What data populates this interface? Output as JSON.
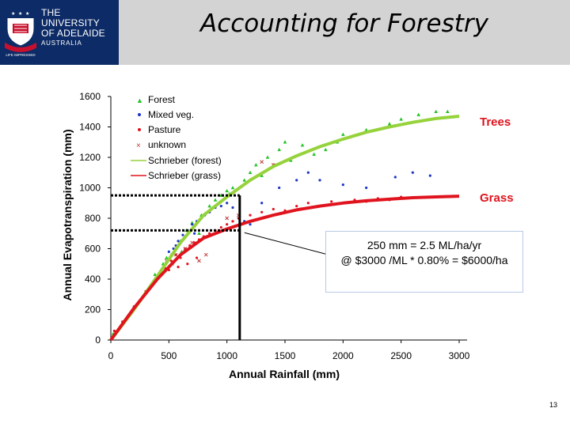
{
  "header": {
    "university": {
      "line1": "THE UNIVERSITY",
      "line2": "OF ADELAIDE",
      "line3": "AUSTRALIA",
      "seal": "LIFE IMPRESSED"
    },
    "title": "Accounting for Forestry"
  },
  "chart_data": {
    "type": "scatter",
    "xlabel": "Annual Rainfall (mm)",
    "ylabel": "Annual Evapotranspiration (mm)",
    "xlim": [
      0,
      3000
    ],
    "ylim": [
      0,
      1600
    ],
    "xticks": [
      "0",
      "500",
      "1000",
      "1500",
      "2000",
      "2500",
      "3000"
    ],
    "yticks": [
      "0",
      "200",
      "400",
      "600",
      "800",
      "1000",
      "1200",
      "1400",
      "1600"
    ],
    "legend": [
      "Forest",
      "Mixed veg.",
      "Pasture",
      "unknown",
      "Schrieber (forest)",
      "Schrieber (grass)"
    ],
    "series": [
      {
        "name": "Forest",
        "marker": "triangle",
        "color": "#22c322",
        "points": [
          [
            20,
            40
          ],
          [
            250,
            260
          ],
          [
            380,
            430
          ],
          [
            450,
            500
          ],
          [
            480,
            540
          ],
          [
            520,
            560
          ],
          [
            560,
            600
          ],
          [
            600,
            650
          ],
          [
            650,
            720
          ],
          [
            700,
            770
          ],
          [
            780,
            820
          ],
          [
            850,
            880
          ],
          [
            900,
            920
          ],
          [
            950,
            950
          ],
          [
            1000,
            980
          ],
          [
            1020,
            960
          ],
          [
            1050,
            1000
          ],
          [
            1150,
            1050
          ],
          [
            1200,
            1100
          ],
          [
            1250,
            1150
          ],
          [
            1300,
            1080
          ],
          [
            1350,
            1200
          ],
          [
            1400,
            1150
          ],
          [
            1450,
            1250
          ],
          [
            1500,
            1300
          ],
          [
            1550,
            1180
          ],
          [
            1650,
            1280
          ],
          [
            1750,
            1220
          ],
          [
            1850,
            1250
          ],
          [
            1950,
            1300
          ],
          [
            2000,
            1350
          ],
          [
            2200,
            1380
          ],
          [
            2400,
            1420
          ],
          [
            2500,
            1450
          ],
          [
            2650,
            1480
          ],
          [
            2800,
            1500
          ],
          [
            2900,
            1500
          ],
          [
            530,
            500
          ],
          [
            610,
            580
          ],
          [
            760,
            700
          ]
        ]
      },
      {
        "name": "Mixed veg.",
        "marker": "dot",
        "color": "#1c36c8",
        "points": [
          [
            500,
            580
          ],
          [
            540,
            600
          ],
          [
            580,
            650
          ],
          [
            620,
            690
          ],
          [
            660,
            720
          ],
          [
            700,
            760
          ],
          [
            740,
            780
          ],
          [
            780,
            800
          ],
          [
            810,
            820
          ],
          [
            850,
            840
          ],
          [
            900,
            870
          ],
          [
            950,
            880
          ],
          [
            1000,
            900
          ],
          [
            1050,
            870
          ],
          [
            1100,
            800
          ],
          [
            1150,
            780
          ],
          [
            1200,
            760
          ],
          [
            1300,
            900
          ],
          [
            1450,
            1000
          ],
          [
            1600,
            1050
          ],
          [
            1700,
            1100
          ],
          [
            1800,
            1050
          ],
          [
            2000,
            1020
          ],
          [
            2200,
            1000
          ],
          [
            2450,
            1070
          ],
          [
            2600,
            1100
          ],
          [
            2750,
            1080
          ],
          [
            560,
            620
          ],
          [
            720,
            700
          ]
        ]
      },
      {
        "name": "Pasture",
        "marker": "dot",
        "color": "#e0141e",
        "points": [
          [
            30,
            60
          ],
          [
            100,
            120
          ],
          [
            200,
            220
          ],
          [
            300,
            320
          ],
          [
            380,
            380
          ],
          [
            420,
            430
          ],
          [
            470,
            470
          ],
          [
            520,
            520
          ],
          [
            560,
            560
          ],
          [
            600,
            540
          ],
          [
            640,
            600
          ],
          [
            680,
            620
          ],
          [
            720,
            640
          ],
          [
            760,
            660
          ],
          [
            800,
            680
          ],
          [
            850,
            700
          ],
          [
            900,
            720
          ],
          [
            950,
            740
          ],
          [
            1000,
            760
          ],
          [
            1050,
            780
          ],
          [
            1100,
            800
          ],
          [
            1200,
            820
          ],
          [
            1300,
            840
          ],
          [
            1400,
            860
          ],
          [
            1500,
            850
          ],
          [
            1600,
            880
          ],
          [
            1700,
            900
          ],
          [
            1800,
            880
          ],
          [
            1900,
            910
          ],
          [
            2000,
            900
          ],
          [
            2100,
            920
          ],
          [
            2200,
            910
          ],
          [
            2300,
            930
          ],
          [
            2400,
            920
          ],
          [
            2500,
            940
          ],
          [
            2700,
            940
          ],
          [
            500,
            460
          ],
          [
            580,
            480
          ],
          [
            660,
            500
          ],
          [
            740,
            540
          ]
        ]
      },
      {
        "name": "unknown",
        "marker": "x",
        "color": "#c03838",
        "points": [
          [
            480,
            520
          ],
          [
            560,
            560
          ],
          [
            640,
            600
          ],
          [
            700,
            640
          ],
          [
            760,
            520
          ],
          [
            820,
            560
          ],
          [
            1000,
            800
          ],
          [
            1100,
            820
          ],
          [
            1300,
            1170
          ],
          [
            1400,
            1150
          ]
        ]
      }
    ],
    "curves": [
      {
        "name": "Schrieber (forest)",
        "color": "#96d23c",
        "points": [
          [
            0,
            0
          ],
          [
            200,
            200
          ],
          [
            400,
            420
          ],
          [
            600,
            640
          ],
          [
            800,
            820
          ],
          [
            1000,
            940
          ],
          [
            1200,
            1050
          ],
          [
            1400,
            1140
          ],
          [
            1600,
            1210
          ],
          [
            1800,
            1270
          ],
          [
            2000,
            1320
          ],
          [
            2200,
            1365
          ],
          [
            2400,
            1400
          ],
          [
            2600,
            1430
          ],
          [
            2800,
            1455
          ],
          [
            3000,
            1470
          ]
        ]
      },
      {
        "name": "Schrieber (grass)",
        "color": "#e0141e",
        "points": [
          [
            0,
            0
          ],
          [
            200,
            210
          ],
          [
            400,
            400
          ],
          [
            600,
            560
          ],
          [
            800,
            670
          ],
          [
            1000,
            730
          ],
          [
            1200,
            780
          ],
          [
            1400,
            820
          ],
          [
            1600,
            855
          ],
          [
            1800,
            880
          ],
          [
            2000,
            900
          ],
          [
            2200,
            915
          ],
          [
            2400,
            925
          ],
          [
            2600,
            935
          ],
          [
            2800,
            940
          ],
          [
            3000,
            945
          ]
        ]
      }
    ],
    "annotations": {
      "trees_label": "Trees",
      "grass_label": "Grass",
      "callout_line1": "250 mm = 2.5 ML/ha/yr",
      "callout_line2": "@ $3000 /ML * 0.80% = $6000/ha",
      "reference_rainfall": 1110,
      "reference_forest_et": 950,
      "reference_grass_et": 720
    }
  },
  "footer": {
    "page_number": "13"
  }
}
